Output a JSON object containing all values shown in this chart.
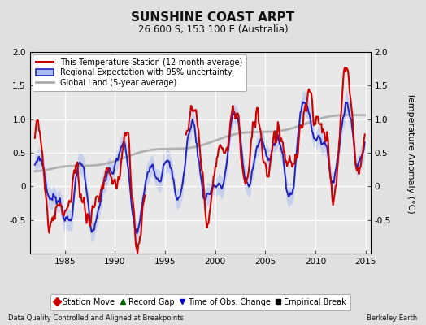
{
  "title": "SUNSHINE COAST ARPT",
  "subtitle": "26.600 S, 153.100 E (Australia)",
  "ylabel": "Temperature Anomaly (°C)",
  "xlabel_left": "Data Quality Controlled and Aligned at Breakpoints",
  "xlabel_right": "Berkeley Earth",
  "ylim": [
    -1,
    2
  ],
  "yticks": [
    -0.5,
    0,
    0.5,
    1.0,
    1.5,
    2.0
  ],
  "xlim": [
    1981.5,
    2015.5
  ],
  "xticks": [
    1985,
    1990,
    1995,
    2000,
    2005,
    2010,
    2015
  ],
  "legend_entries": [
    {
      "label": "This Temperature Station (12-month average)",
      "color": "#cc0000",
      "lw": 1.5
    },
    {
      "label": "Regional Expectation with 95% uncertainty",
      "color": "#2222bb",
      "lw": 1.4
    },
    {
      "label": "Global Land (5-year average)",
      "color": "#aaaaaa",
      "lw": 2.0
    }
  ],
  "marker_legend": [
    {
      "marker": "D",
      "color": "#cc0000",
      "label": "Station Move"
    },
    {
      "marker": "^",
      "color": "#006600",
      "label": "Record Gap"
    },
    {
      "marker": "v",
      "color": "#0000cc",
      "label": "Time of Obs. Change"
    },
    {
      "marker": "s",
      "color": "#000000",
      "label": "Empirical Break"
    }
  ],
  "bg_color": "#e0e0e0",
  "plot_bg_color": "#e8e8e8",
  "grid_color": "#ffffff",
  "uncertainty_color": "#aabbee",
  "uncertainty_alpha": 0.55
}
